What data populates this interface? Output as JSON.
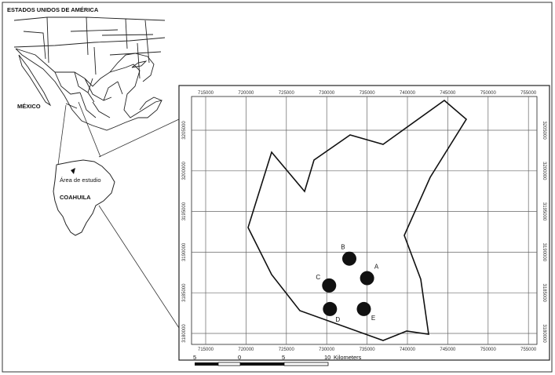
{
  "country_label_top": "ESTADOS UNIDOS DE AMÉRICA",
  "country_label_mexico": "MÉXICO",
  "state_label": "COAHUILA",
  "study_area_label": "Área de estudio",
  "grid": {
    "x_ticks": [
      "715000",
      "720000",
      "725000",
      "730000",
      "735000",
      "740000",
      "745000",
      "750000",
      "755000"
    ],
    "y_ticks": [
      "3205000",
      "3200000",
      "3195000",
      "3190000",
      "3185000",
      "3180000"
    ]
  },
  "sites": [
    {
      "id": "A",
      "x": 735000,
      "y": 3186800
    },
    {
      "id": "B",
      "x": 732800,
      "y": 3189200
    },
    {
      "id": "C",
      "x": 730300,
      "y": 3185900
    },
    {
      "id": "D",
      "x": 730400,
      "y": 3183000
    },
    {
      "id": "E",
      "x": 734600,
      "y": 3183000
    }
  ],
  "scale_bar": {
    "labels": [
      "5",
      "0",
      "5",
      "10"
    ],
    "unit": "Kilometers"
  },
  "colors": {
    "ink": "#111111",
    "grid": "#666666",
    "background": "#ffffff"
  }
}
